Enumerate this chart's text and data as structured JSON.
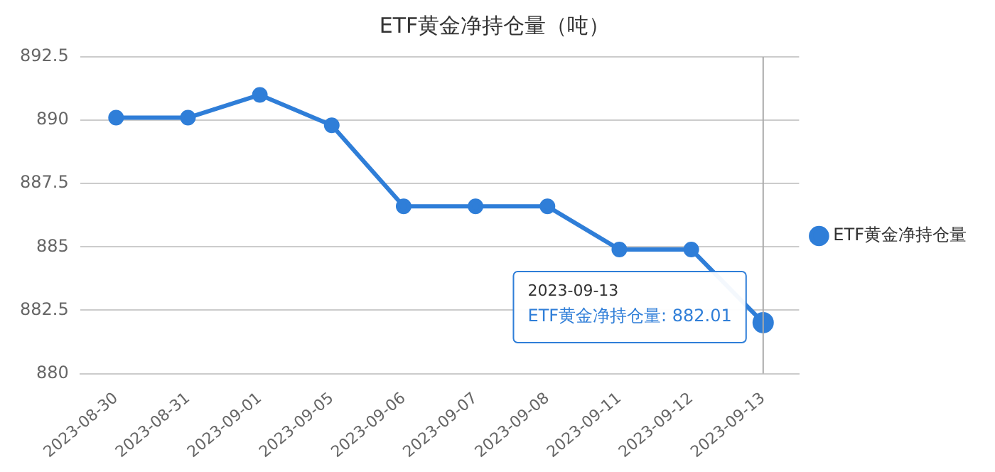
{
  "chart_data": {
    "type": "line",
    "title": "ETF黄金净持仓量（吨）",
    "categories": [
      "2023-08-30",
      "2023-08-31",
      "2023-09-01",
      "2023-09-05",
      "2023-09-06",
      "2023-09-07",
      "2023-09-08",
      "2023-09-11",
      "2023-09-12",
      "2023-09-13"
    ],
    "series": [
      {
        "name": "ETF黄金净持仓量",
        "color": "#2f7ed8",
        "values": [
          890.1,
          890.1,
          891.0,
          889.8,
          886.6,
          886.6,
          886.6,
          884.9,
          884.9,
          882.01
        ]
      }
    ],
    "ylim": [
      880,
      892.5
    ],
    "yticks": [
      880,
      882.5,
      885,
      887.5,
      890,
      892.5
    ],
    "grid": "y",
    "legend": "right",
    "marker": "circle",
    "line_style": "solid",
    "ref_lines": [
      {
        "axis": "x",
        "value": "2023-09-13",
        "color": "#aaaaaa"
      }
    ],
    "annotations": [
      "2023-09-13",
      "ETF黄金净持仓量: 882.01"
    ]
  }
}
